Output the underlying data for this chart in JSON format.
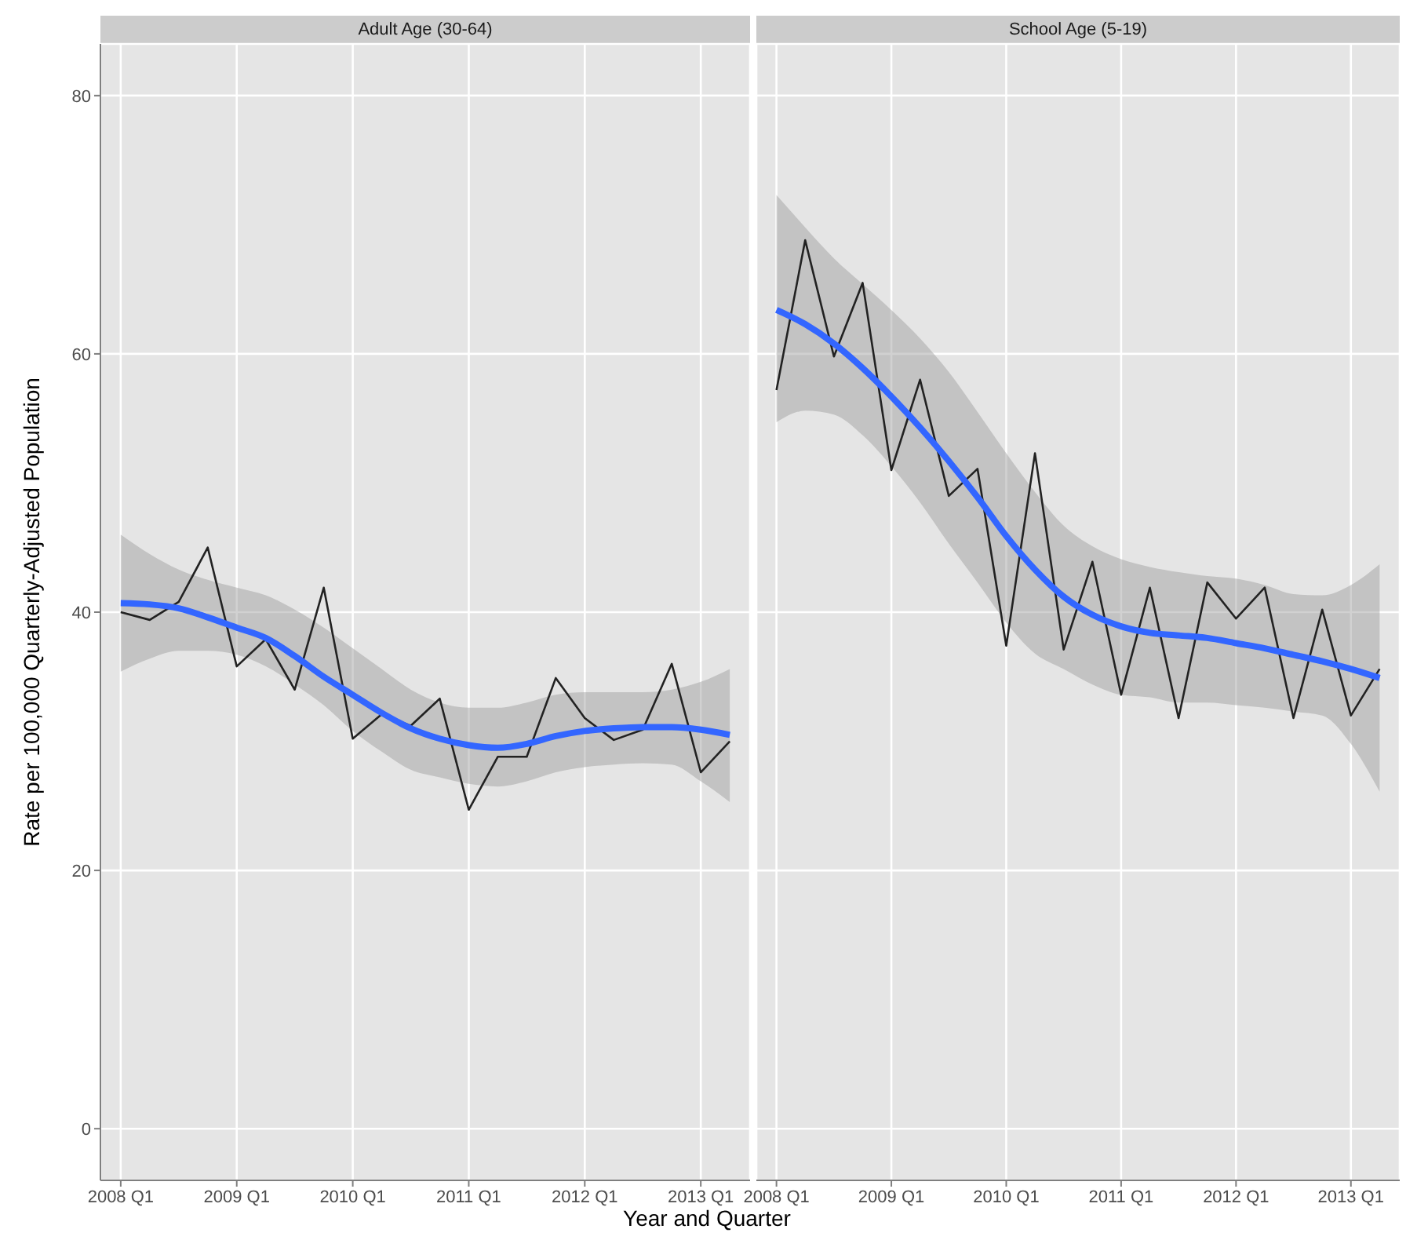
{
  "chart_data": [
    {
      "type": "line",
      "title": "Adult Age (30-64)",
      "ylabel": "Rate per 100,000 Quarterly-Adjusted Population",
      "xlabel": "Year and Quarter",
      "categories": [
        "2008 Q1",
        null,
        null,
        null,
        "2009 Q1",
        null,
        null,
        null,
        "2010 Q1",
        null,
        null,
        null,
        "2011 Q1",
        null,
        null,
        null,
        "2012 Q1",
        null,
        null,
        null,
        "2013 Q1",
        null
      ],
      "series": [
        {
          "color": "#222222",
          "values": [
            40.0,
            39.4,
            40.8,
            45.0,
            35.8,
            37.9,
            34.0,
            41.9,
            30.2,
            32.1,
            31.2,
            33.3,
            24.7,
            28.8,
            28.8,
            34.9,
            31.8,
            30.1,
            30.9,
            36.0,
            27.6,
            30.0
          ]
        },
        {
          "color": "#3366ff",
          "values": [
            40.7,
            40.6,
            40.3,
            39.6,
            38.8,
            38.0,
            36.6,
            35.0,
            33.6,
            32.2,
            31.0,
            30.2,
            29.7,
            29.5,
            29.8,
            30.4,
            30.8,
            31.0,
            31.1,
            31.1,
            30.9,
            30.5
          ],
          "lower": [
            35.4,
            36.4,
            37.0,
            37.0,
            36.7,
            35.8,
            34.4,
            32.8,
            30.8,
            29.2,
            27.8,
            27.2,
            26.7,
            26.5,
            26.9,
            27.6,
            28.0,
            28.2,
            28.3,
            28.2,
            26.9,
            25.3
          ],
          "upper": [
            46.0,
            44.5,
            43.3,
            42.5,
            41.9,
            41.3,
            40.2,
            38.8,
            37.2,
            35.6,
            34.0,
            33.0,
            32.6,
            32.6,
            33.0,
            33.6,
            33.8,
            33.8,
            33.8,
            34.0,
            34.6,
            35.6
          ]
        }
      ],
      "ylim": [
        -4,
        84
      ],
      "yticks": [
        0,
        20,
        40,
        60,
        80
      ],
      "grid": true
    },
    {
      "type": "line",
      "title": "School Age (5-19)",
      "categories": [
        "2008 Q1",
        null,
        null,
        null,
        "2009 Q1",
        null,
        null,
        null,
        "2010 Q1",
        null,
        null,
        null,
        "2011 Q1",
        null,
        null,
        null,
        "2012 Q1",
        null,
        null,
        null,
        "2013 Q1",
        null
      ],
      "series": [
        {
          "color": "#222222",
          "values": [
            57.2,
            68.8,
            59.8,
            65.5,
            51.0,
            58.0,
            49.0,
            51.1,
            37.4,
            52.3,
            37.1,
            43.9,
            33.6,
            41.9,
            31.8,
            42.3,
            39.5,
            41.9,
            31.8,
            40.2,
            32.0,
            35.6
          ]
        },
        {
          "color": "#3366ff",
          "values": [
            63.4,
            62.3,
            60.8,
            58.9,
            56.7,
            54.3,
            51.7,
            48.9,
            45.9,
            43.3,
            41.2,
            39.8,
            38.9,
            38.4,
            38.2,
            38.0,
            37.6,
            37.2,
            36.7,
            36.2,
            35.6,
            34.9
          ],
          "lower": [
            54.7,
            55.6,
            55.3,
            53.7,
            51.3,
            48.5,
            45.3,
            42.3,
            39.2,
            36.8,
            35.6,
            34.4,
            33.6,
            33.4,
            33.0,
            33.0,
            32.8,
            32.6,
            32.3,
            32.0,
            29.8,
            26.1
          ],
          "upper": [
            72.3,
            69.8,
            67.4,
            65.4,
            63.4,
            61.2,
            58.6,
            55.5,
            52.3,
            49.3,
            46.7,
            45.1,
            44.1,
            43.5,
            43.1,
            42.8,
            42.6,
            42.1,
            41.4,
            41.3,
            42.1,
            43.7
          ]
        }
      ],
      "ylim": [
        -4,
        84
      ],
      "yticks": [
        0,
        20,
        40,
        60,
        80
      ],
      "grid": true,
      "tick_labels": "x"
    }
  ]
}
